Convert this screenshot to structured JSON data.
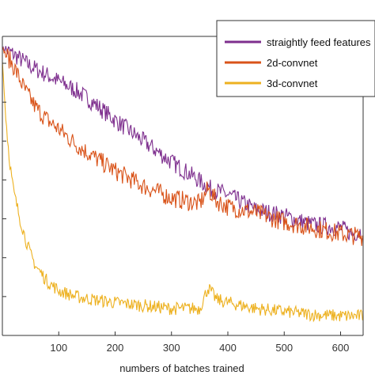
{
  "chart_data": {
    "type": "line",
    "title": "",
    "xlabel": "numbers of batches trained",
    "ylabel": "",
    "xlim": [
      0,
      640
    ],
    "ylim": [
      0,
      1.0
    ],
    "x_ticks": [
      100,
      200,
      300,
      400,
      500,
      600
    ],
    "grid": false,
    "legend_position": "top-right",
    "series": [
      {
        "name": "straightly feed features",
        "color": "#7E2F8E",
        "points": [
          [
            0,
            0.96
          ],
          [
            20,
            0.94
          ],
          [
            50,
            0.9
          ],
          [
            80,
            0.87
          ],
          [
            100,
            0.85
          ],
          [
            130,
            0.82
          ],
          [
            160,
            0.78
          ],
          [
            200,
            0.72
          ],
          [
            250,
            0.65
          ],
          [
            300,
            0.58
          ],
          [
            340,
            0.53
          ],
          [
            370,
            0.49
          ],
          [
            400,
            0.47
          ],
          [
            450,
            0.42
          ],
          [
            500,
            0.4
          ],
          [
            550,
            0.37
          ],
          [
            600,
            0.36
          ],
          [
            620,
            0.34
          ],
          [
            640,
            0.35
          ]
        ]
      },
      {
        "name": "2d-convnet",
        "color": "#D95319",
        "points": [
          [
            0,
            0.96
          ],
          [
            20,
            0.9
          ],
          [
            40,
            0.82
          ],
          [
            60,
            0.76
          ],
          [
            80,
            0.72
          ],
          [
            100,
            0.69
          ],
          [
            130,
            0.64
          ],
          [
            160,
            0.6
          ],
          [
            200,
            0.55
          ],
          [
            250,
            0.5
          ],
          [
            300,
            0.46
          ],
          [
            350,
            0.44
          ],
          [
            365,
            0.49
          ],
          [
            380,
            0.45
          ],
          [
            400,
            0.43
          ],
          [
            450,
            0.41
          ],
          [
            500,
            0.38
          ],
          [
            550,
            0.36
          ],
          [
            600,
            0.34
          ],
          [
            640,
            0.33
          ]
        ]
      },
      {
        "name": "3d-convnet",
        "color": "#EDB120",
        "points": [
          [
            0,
            0.92
          ],
          [
            5,
            0.76
          ],
          [
            10,
            0.64
          ],
          [
            15,
            0.55
          ],
          [
            20,
            0.48
          ],
          [
            30,
            0.4
          ],
          [
            40,
            0.33
          ],
          [
            50,
            0.27
          ],
          [
            60,
            0.23
          ],
          [
            80,
            0.18
          ],
          [
            100,
            0.15
          ],
          [
            130,
            0.13
          ],
          [
            160,
            0.12
          ],
          [
            200,
            0.11
          ],
          [
            250,
            0.1
          ],
          [
            300,
            0.09
          ],
          [
            350,
            0.09
          ],
          [
            365,
            0.16
          ],
          [
            380,
            0.12
          ],
          [
            400,
            0.11
          ],
          [
            450,
            0.09
          ],
          [
            500,
            0.08
          ],
          [
            550,
            0.07
          ],
          [
            600,
            0.065
          ],
          [
            640,
            0.065
          ]
        ]
      }
    ]
  }
}
